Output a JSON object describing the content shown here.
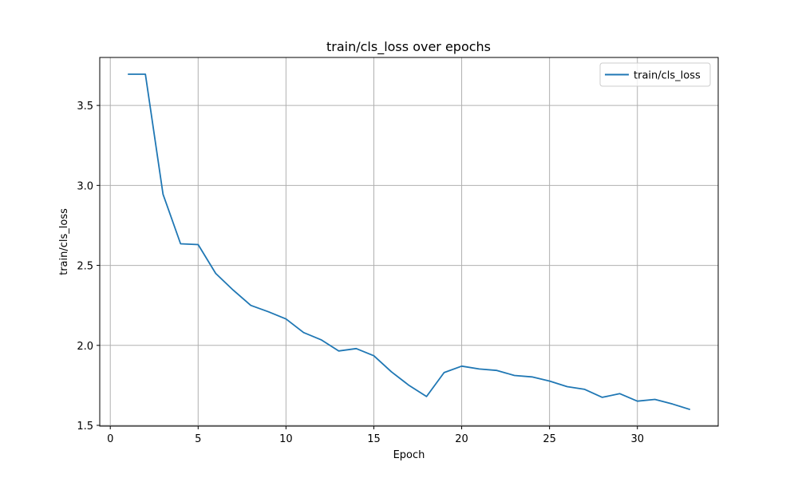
{
  "chart_data": {
    "type": "line",
    "title": "train/cls_loss over epochs",
    "xlabel": "Epoch",
    "ylabel": "train/cls_loss",
    "xlim": [
      -0.6,
      34.6
    ],
    "ylim": [
      1.495,
      3.8
    ],
    "xticks": [
      0,
      5,
      10,
      15,
      20,
      25,
      30
    ],
    "xtick_labels": [
      "0",
      "5",
      "10",
      "15",
      "20",
      "25",
      "30"
    ],
    "yticks": [
      1.5,
      2.0,
      2.5,
      3.0,
      3.5
    ],
    "ytick_labels": [
      "1.5",
      "2.0",
      "2.5",
      "3.0",
      "3.5"
    ],
    "grid": true,
    "legend_position": "top-right",
    "series": [
      {
        "name": "train/cls_loss",
        "color": "#1f77b4",
        "x": [
          1,
          2,
          3,
          4,
          5,
          6,
          7,
          8,
          9,
          10,
          11,
          12,
          13,
          14,
          15,
          16,
          17,
          18,
          19,
          20,
          21,
          22,
          23,
          24,
          25,
          26,
          27,
          28,
          29,
          30,
          31,
          32,
          33
        ],
        "y": [
          3.695,
          3.695,
          2.945,
          2.635,
          2.63,
          2.45,
          2.345,
          2.25,
          2.21,
          2.165,
          2.08,
          2.035,
          1.965,
          1.98,
          1.935,
          1.835,
          1.75,
          1.68,
          1.83,
          1.87,
          1.852,
          1.843,
          1.812,
          1.803,
          1.777,
          1.742,
          1.725,
          1.675,
          1.698,
          1.651,
          1.662,
          1.633,
          1.599
        ]
      }
    ]
  }
}
